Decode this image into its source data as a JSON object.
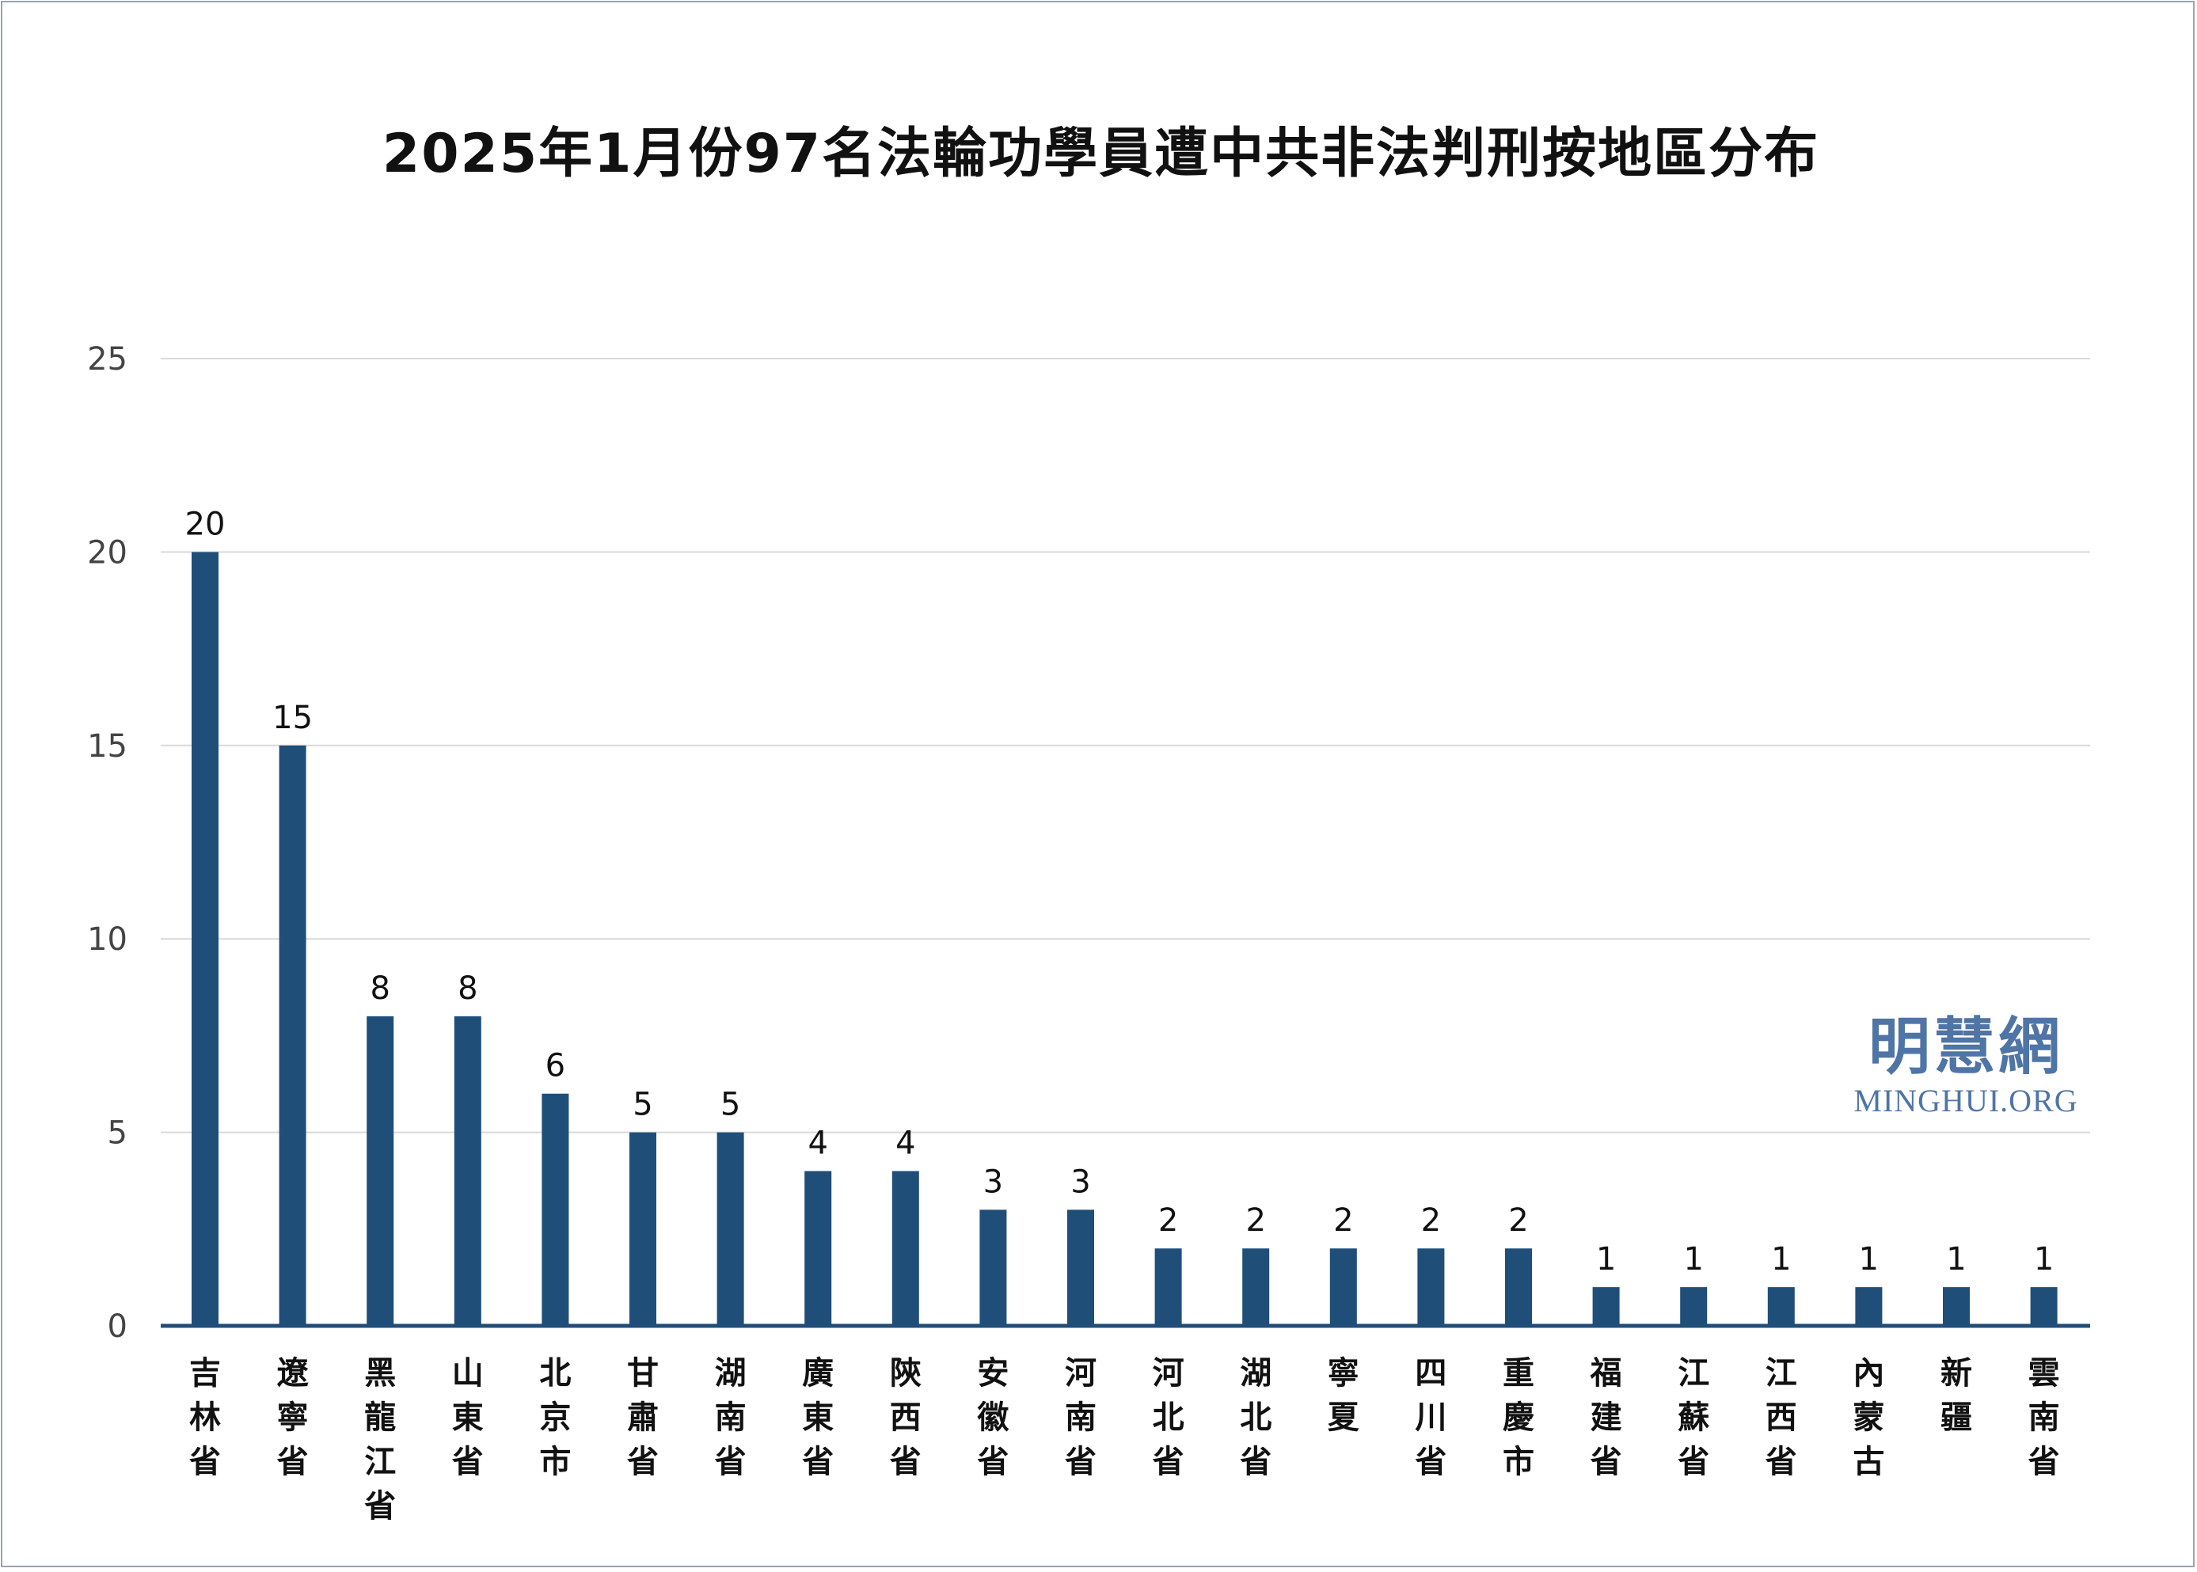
{
  "chart_data": {
    "type": "bar",
    "title": "2025年1月份97名法輪功學員遭中共非法判刑按地區分布",
    "xlabel": "",
    "ylabel": "",
    "ylim": [
      0,
      25
    ],
    "yticks": [
      "0",
      "5",
      "10",
      "15",
      "20",
      "25"
    ],
    "grid": true,
    "legend": "none",
    "categories": [
      "吉林省",
      "遼寧省",
      "黑龍江省",
      "山東省",
      "北京市",
      "甘肅省",
      "湖南省",
      "廣東省",
      "陝西省",
      "安徽省",
      "河南省",
      "河北省",
      "湖北省",
      "寧夏",
      "四川省",
      "重慶市",
      "福建省",
      "江蘇省",
      "江西省",
      "內蒙古",
      "新疆",
      "雲南省"
    ],
    "values": [
      20,
      15,
      8,
      8,
      6,
      5,
      5,
      4,
      4,
      3,
      3,
      2,
      2,
      2,
      2,
      2,
      1,
      1,
      1,
      1,
      1,
      1
    ],
    "bar_color": "#1f4e79",
    "grid_color": "#d9d9d9",
    "axis_color": "#1f4e79"
  },
  "watermark": {
    "name_cn": "明慧網",
    "name_en": "MINGHUI.ORG",
    "color": "#4f74a6"
  }
}
